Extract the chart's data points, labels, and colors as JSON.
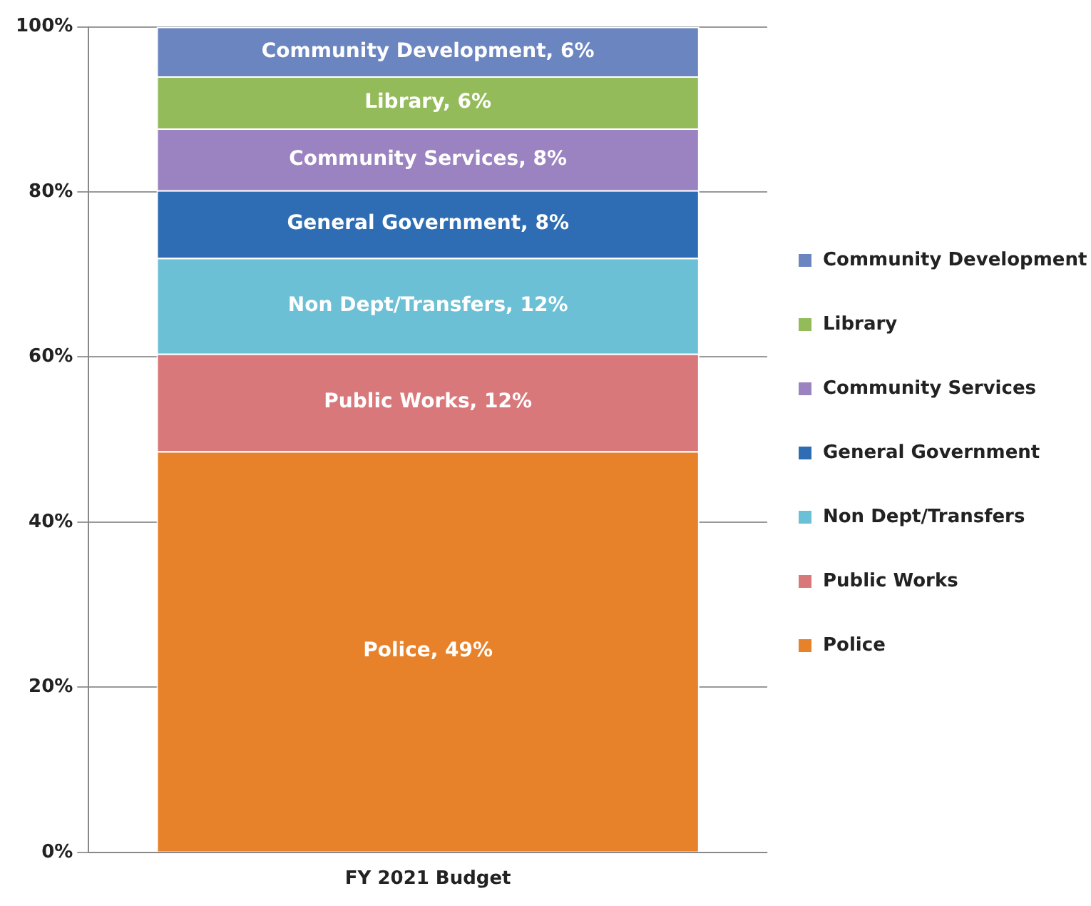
{
  "chart_data": {
    "type": "bar",
    "stacked": true,
    "categories": [
      "FY 2021 Budget"
    ],
    "series": [
      {
        "name": "Police",
        "color": "#e8822a",
        "values": [
          48.6
        ],
        "value_labels": [
          "Police, 49%"
        ]
      },
      {
        "name": "Public Works",
        "color": "#d9787a",
        "values": [
          11.8
        ],
        "value_labels": [
          "Public Works, 12%"
        ]
      },
      {
        "name": "Non Dept/Transfers",
        "color": "#6cc0d6",
        "values": [
          11.6
        ],
        "value_labels": [
          "Non Dept/Transfers, 12%"
        ]
      },
      {
        "name": "General Government",
        "color": "#2e6db4",
        "values": [
          8.2
        ],
        "value_labels": [
          "General Government, 8%"
        ]
      },
      {
        "name": "Community Services",
        "color": "#9b82c0",
        "values": [
          7.5
        ],
        "value_labels": [
          "Community Services, 8%"
        ]
      },
      {
        "name": "Library",
        "color": "#94bb5a",
        "values": [
          6.3
        ],
        "value_labels": [
          "Library, 6%"
        ]
      },
      {
        "name": "Community Development",
        "color": "#6b85c0",
        "values": [
          6.0
        ],
        "value_labels": [
          "Community Development, 6%"
        ]
      }
    ],
    "ylim": [
      0,
      100
    ],
    "yticks": [
      {
        "value": 0,
        "label": "0%"
      },
      {
        "value": 20,
        "label": "20%"
      },
      {
        "value": 40,
        "label": "40%"
      },
      {
        "value": 60,
        "label": "60%"
      },
      {
        "value": 80,
        "label": "80%"
      },
      {
        "value": 100,
        "label": "100%"
      }
    ],
    "grid": "y",
    "legend": "right"
  }
}
